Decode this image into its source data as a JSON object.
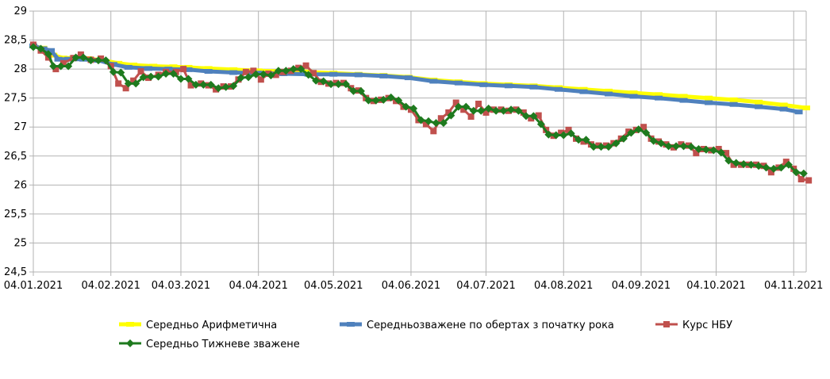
{
  "chart_data": {
    "type": "line",
    "ylim": [
      24.5,
      29
    ],
    "yticks": [
      "24,5",
      "25",
      "25,5",
      "26",
      "26,5",
      "27",
      "27,5",
      "28",
      "28,5",
      "29"
    ],
    "ytick_values": [
      24.5,
      25,
      25.5,
      26,
      26.5,
      27,
      27.5,
      28,
      28.5,
      29
    ],
    "xlim": [
      0,
      309
    ],
    "xticks": [
      {
        "label": "04.01.2021",
        "x": 0
      },
      {
        "label": "04.02.2021",
        "x": 31
      },
      {
        "label": "04.03.2021",
        "x": 59
      },
      {
        "label": "04.04.2021",
        "x": 90
      },
      {
        "label": "04.05.2021",
        "x": 120
      },
      {
        "label": "04.06.2021",
        "x": 151
      },
      {
        "label": "04.07.2021",
        "x": 181
      },
      {
        "label": "04.08.2021",
        "x": 212
      },
      {
        "label": "04.09.2021",
        "x": 243
      },
      {
        "label": "04.10.2021",
        "x": 273
      },
      {
        "label": "04.11.2021",
        "x": 304
      }
    ],
    "grid": true,
    "legend_position": "bottom",
    "series": [
      {
        "name": "Середньо Арифметична",
        "color": "#ffff00",
        "marker": "dash",
        "points": [
          [
            0,
            28.4
          ],
          [
            4,
            28.36
          ],
          [
            8,
            28.24
          ],
          [
            12,
            28.19
          ],
          [
            16,
            28.19
          ],
          [
            22,
            28.18
          ],
          [
            28,
            28.15
          ],
          [
            34,
            28.1
          ],
          [
            40,
            28.07
          ],
          [
            48,
            28.05
          ],
          [
            56,
            28.04
          ],
          [
            62,
            28.03
          ],
          [
            70,
            28.01
          ],
          [
            80,
            27.99
          ],
          [
            90,
            27.97
          ],
          [
            100,
            27.96
          ],
          [
            110,
            27.95
          ],
          [
            120,
            27.93
          ],
          [
            130,
            27.91
          ],
          [
            140,
            27.89
          ],
          [
            150,
            27.86
          ],
          [
            160,
            27.81
          ],
          [
            170,
            27.78
          ],
          [
            180,
            27.75
          ],
          [
            190,
            27.73
          ],
          [
            200,
            27.71
          ],
          [
            210,
            27.68
          ],
          [
            220,
            27.65
          ],
          [
            230,
            27.62
          ],
          [
            240,
            27.59
          ],
          [
            250,
            27.56
          ],
          [
            260,
            27.53
          ],
          [
            270,
            27.5
          ],
          [
            280,
            27.47
          ],
          [
            290,
            27.43
          ],
          [
            300,
            27.38
          ],
          [
            309,
            27.33
          ]
        ]
      },
      {
        "name": "Середньозважене по обертах з початку рока",
        "color": "#4f81bd",
        "marker": "dash",
        "points": [
          [
            0,
            28.4
          ],
          [
            4,
            28.35
          ],
          [
            7,
            28.32
          ],
          [
            10,
            28.17
          ],
          [
            14,
            28.17
          ],
          [
            20,
            28.17
          ],
          [
            26,
            28.15
          ],
          [
            32,
            28.08
          ],
          [
            38,
            28.03
          ],
          [
            46,
            28.01
          ],
          [
            54,
            28.0
          ],
          [
            62,
            27.99
          ],
          [
            70,
            27.96
          ],
          [
            80,
            27.94
          ],
          [
            90,
            27.93
          ],
          [
            100,
            27.92
          ],
          [
            110,
            27.91
          ],
          [
            120,
            27.91
          ],
          [
            130,
            27.9
          ],
          [
            140,
            27.88
          ],
          [
            150,
            27.85
          ],
          [
            160,
            27.79
          ],
          [
            170,
            27.76
          ],
          [
            180,
            27.73
          ],
          [
            190,
            27.71
          ],
          [
            200,
            27.69
          ],
          [
            210,
            27.65
          ],
          [
            220,
            27.61
          ],
          [
            230,
            27.57
          ],
          [
            240,
            27.53
          ],
          [
            250,
            27.5
          ],
          [
            260,
            27.46
          ],
          [
            270,
            27.42
          ],
          [
            280,
            27.39
          ],
          [
            290,
            27.35
          ],
          [
            300,
            27.31
          ],
          [
            306,
            27.26
          ]
        ]
      },
      {
        "name": "Курс НБУ",
        "color": "#c0504d",
        "marker": "square",
        "points": [
          [
            0,
            28.42
          ],
          [
            3,
            28.32
          ],
          [
            6,
            28.2
          ],
          [
            9,
            28.0
          ],
          [
            12,
            28.1
          ],
          [
            16,
            28.19
          ],
          [
            19,
            28.25
          ],
          [
            23,
            28.16
          ],
          [
            27,
            28.18
          ],
          [
            31,
            28.05
          ],
          [
            34,
            27.75
          ],
          [
            37,
            27.67
          ],
          [
            40,
            27.8
          ],
          [
            43,
            27.96
          ],
          [
            46,
            27.85
          ],
          [
            50,
            27.9
          ],
          [
            53,
            27.95
          ],
          [
            57,
            27.95
          ],
          [
            60,
            28.0
          ],
          [
            63,
            27.72
          ],
          [
            67,
            27.75
          ],
          [
            70,
            27.72
          ],
          [
            73,
            27.65
          ],
          [
            76,
            27.7
          ],
          [
            79,
            27.7
          ],
          [
            82,
            27.82
          ],
          [
            85,
            27.95
          ],
          [
            88,
            27.97
          ],
          [
            91,
            27.82
          ],
          [
            94,
            27.92
          ],
          [
            97,
            27.9
          ],
          [
            100,
            27.95
          ],
          [
            103,
            27.97
          ],
          [
            106,
            28.02
          ],
          [
            109,
            28.06
          ],
          [
            112,
            27.93
          ],
          [
            115,
            27.78
          ],
          [
            118,
            27.75
          ],
          [
            121,
            27.76
          ],
          [
            124,
            27.76
          ],
          [
            127,
            27.67
          ],
          [
            130,
            27.63
          ],
          [
            133,
            27.5
          ],
          [
            136,
            27.45
          ],
          [
            139,
            27.47
          ],
          [
            142,
            27.5
          ],
          [
            145,
            27.45
          ],
          [
            148,
            27.35
          ],
          [
            151,
            27.3
          ],
          [
            154,
            27.12
          ],
          [
            157,
            27.05
          ],
          [
            160,
            26.93
          ],
          [
            163,
            27.15
          ],
          [
            166,
            27.25
          ],
          [
            169,
            27.42
          ],
          [
            172,
            27.3
          ],
          [
            175,
            27.18
          ],
          [
            178,
            27.4
          ],
          [
            181,
            27.25
          ],
          [
            184,
            27.3
          ],
          [
            187,
            27.3
          ],
          [
            190,
            27.28
          ],
          [
            193,
            27.3
          ],
          [
            196,
            27.25
          ],
          [
            199,
            27.15
          ],
          [
            202,
            27.2
          ],
          [
            205,
            26.95
          ],
          [
            208,
            26.85
          ],
          [
            211,
            26.9
          ],
          [
            214,
            26.95
          ],
          [
            217,
            26.8
          ],
          [
            220,
            26.75
          ],
          [
            223,
            26.7
          ],
          [
            226,
            26.68
          ],
          [
            229,
            26.68
          ],
          [
            232,
            26.72
          ],
          [
            235,
            26.8
          ],
          [
            238,
            26.92
          ],
          [
            241,
            26.95
          ],
          [
            244,
            27.0
          ],
          [
            247,
            26.8
          ],
          [
            250,
            26.75
          ],
          [
            253,
            26.7
          ],
          [
            256,
            26.65
          ],
          [
            259,
            26.7
          ],
          [
            262,
            26.68
          ],
          [
            265,
            26.55
          ],
          [
            268,
            26.62
          ],
          [
            271,
            26.6
          ],
          [
            274,
            26.62
          ],
          [
            277,
            26.55
          ],
          [
            280,
            26.35
          ],
          [
            283,
            26.35
          ],
          [
            286,
            26.35
          ],
          [
            289,
            26.35
          ],
          [
            292,
            26.33
          ],
          [
            295,
            26.22
          ],
          [
            298,
            26.3
          ],
          [
            301,
            26.4
          ],
          [
            304,
            26.28
          ],
          [
            307,
            26.1
          ],
          [
            310,
            26.08
          ]
        ]
      },
      {
        "name": "Середньо Тижневе зважене",
        "color": "#1e7a1e",
        "marker": "diamond",
        "points": [
          [
            0,
            28.38
          ],
          [
            3,
            28.35
          ],
          [
            6,
            28.26
          ],
          [
            8,
            28.05
          ],
          [
            11,
            28.05
          ],
          [
            14,
            28.05
          ],
          [
            17,
            28.2
          ],
          [
            20,
            28.2
          ],
          [
            23,
            28.15
          ],
          [
            26,
            28.15
          ],
          [
            29,
            28.15
          ],
          [
            32,
            27.95
          ],
          [
            35,
            27.94
          ],
          [
            38,
            27.75
          ],
          [
            41,
            27.75
          ],
          [
            44,
            27.86
          ],
          [
            47,
            27.87
          ],
          [
            50,
            27.87
          ],
          [
            53,
            27.92
          ],
          [
            56,
            27.92
          ],
          [
            59,
            27.83
          ],
          [
            62,
            27.83
          ],
          [
            65,
            27.73
          ],
          [
            68,
            27.73
          ],
          [
            71,
            27.73
          ],
          [
            74,
            27.67
          ],
          [
            77,
            27.69
          ],
          [
            80,
            27.71
          ],
          [
            83,
            27.85
          ],
          [
            86,
            27.86
          ],
          [
            89,
            27.91
          ],
          [
            92,
            27.91
          ],
          [
            95,
            27.89
          ],
          [
            98,
            27.97
          ],
          [
            101,
            27.97
          ],
          [
            104,
            28.0
          ],
          [
            107,
            28.0
          ],
          [
            110,
            27.9
          ],
          [
            113,
            27.8
          ],
          [
            116,
            27.79
          ],
          [
            119,
            27.74
          ],
          [
            122,
            27.74
          ],
          [
            125,
            27.74
          ],
          [
            128,
            27.62
          ],
          [
            131,
            27.62
          ],
          [
            134,
            27.46
          ],
          [
            137,
            27.46
          ],
          [
            140,
            27.47
          ],
          [
            143,
            27.51
          ],
          [
            146,
            27.46
          ],
          [
            149,
            27.35
          ],
          [
            152,
            27.32
          ],
          [
            155,
            27.12
          ],
          [
            158,
            27.1
          ],
          [
            161,
            27.07
          ],
          [
            164,
            27.07
          ],
          [
            167,
            27.2
          ],
          [
            170,
            27.35
          ],
          [
            173,
            27.35
          ],
          [
            176,
            27.28
          ],
          [
            179,
            27.28
          ],
          [
            182,
            27.32
          ],
          [
            185,
            27.28
          ],
          [
            188,
            27.28
          ],
          [
            191,
            27.3
          ],
          [
            194,
            27.28
          ],
          [
            197,
            27.19
          ],
          [
            200,
            27.19
          ],
          [
            203,
            27.05
          ],
          [
            206,
            26.87
          ],
          [
            209,
            26.86
          ],
          [
            212,
            26.86
          ],
          [
            215,
            26.89
          ],
          [
            218,
            26.78
          ],
          [
            221,
            26.78
          ],
          [
            224,
            26.66
          ],
          [
            227,
            26.66
          ],
          [
            230,
            26.66
          ],
          [
            233,
            26.72
          ],
          [
            236,
            26.8
          ],
          [
            239,
            26.9
          ],
          [
            242,
            26.96
          ],
          [
            245,
            26.9
          ],
          [
            248,
            26.76
          ],
          [
            251,
            26.72
          ],
          [
            254,
            26.67
          ],
          [
            257,
            26.67
          ],
          [
            260,
            26.67
          ],
          [
            263,
            26.66
          ],
          [
            266,
            26.62
          ],
          [
            269,
            26.61
          ],
          [
            272,
            26.6
          ],
          [
            275,
            26.56
          ],
          [
            278,
            26.42
          ],
          [
            281,
            26.38
          ],
          [
            284,
            26.36
          ],
          [
            287,
            26.35
          ],
          [
            290,
            26.33
          ],
          [
            293,
            26.3
          ],
          [
            296,
            26.28
          ],
          [
            299,
            26.3
          ],
          [
            302,
            26.35
          ],
          [
            305,
            26.22
          ],
          [
            308,
            26.2
          ]
        ]
      }
    ]
  }
}
